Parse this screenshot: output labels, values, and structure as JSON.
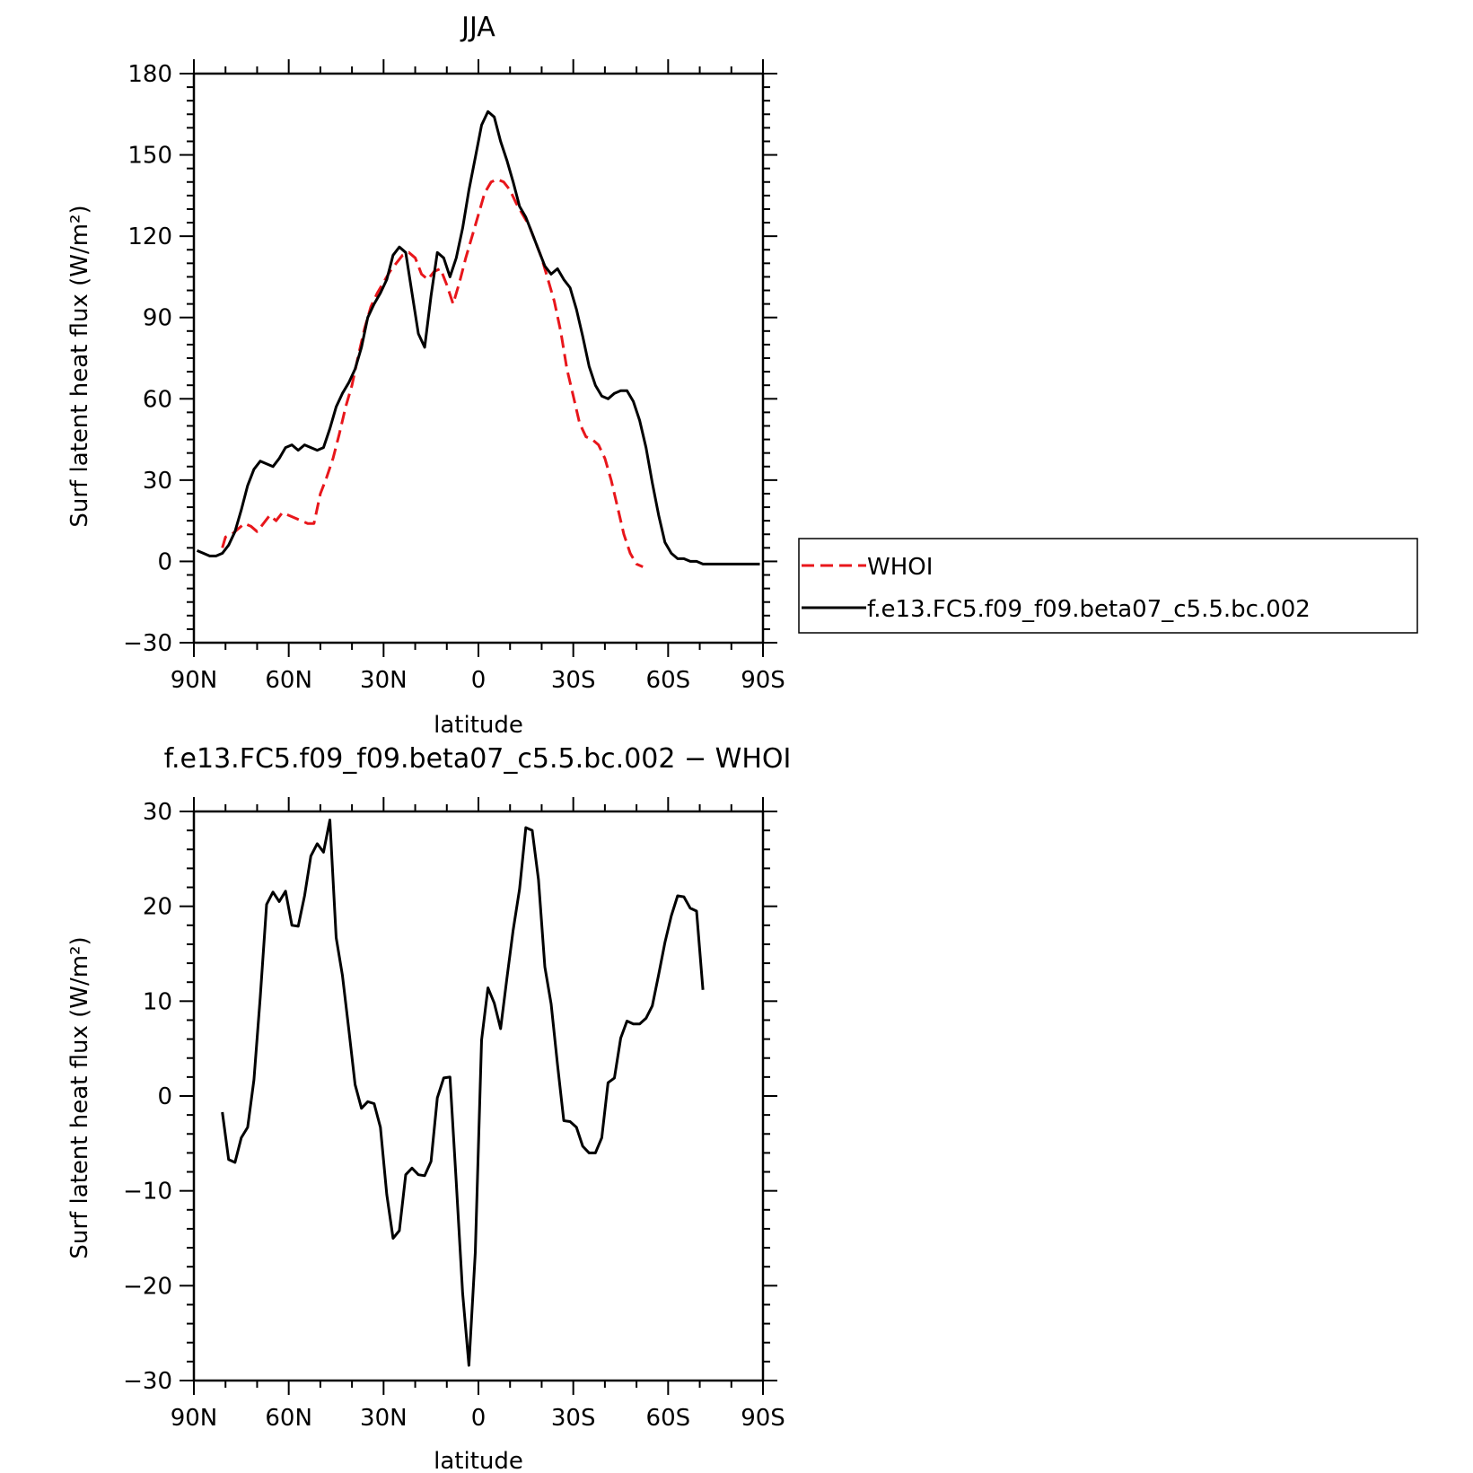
{
  "chart_data": [
    {
      "type": "line",
      "title": "JJA",
      "xlabel": "latitude",
      "ylabel": "Surf latent heat flux (W/m²)",
      "xlim": [
        90,
        -90
      ],
      "ylim": [
        -30,
        180
      ],
      "xticks": [
        90,
        60,
        30,
        0,
        -30,
        -60,
        -90
      ],
      "xtick_labels": [
        "90N",
        "60N",
        "30N",
        "0",
        "30S",
        "60S",
        "90S"
      ],
      "yticks": [
        -30,
        0,
        30,
        60,
        90,
        120,
        150,
        180
      ],
      "ytick_labels": [
        "−30",
        "0",
        "30",
        "60",
        "90",
        "120",
        "150",
        "180"
      ],
      "grid": false,
      "legend": "right",
      "series": [
        {
          "name": "WHOI",
          "color": "#e8161b",
          "style": "dashed",
          "x": [
            81,
            80,
            78,
            76,
            74,
            72,
            70,
            68,
            66,
            64,
            62,
            60,
            58,
            56,
            54,
            52,
            50,
            49,
            48,
            46,
            44,
            42,
            40,
            38,
            36,
            34,
            32,
            30,
            28,
            26,
            24,
            22,
            20,
            18,
            16,
            14,
            12,
            10,
            8,
            6,
            4,
            2,
            0,
            -2,
            -4,
            -6,
            -8,
            -10,
            -12,
            -14,
            -16,
            -18,
            -20,
            -22,
            -24,
            -26,
            -28,
            -30,
            -32,
            -34,
            -36,
            -38,
            -40,
            -42,
            -44,
            -46,
            -48,
            -50,
            -52,
            -54,
            -56,
            -58,
            -60,
            -62,
            -64,
            -66,
            -68,
            -70,
            -71
          ],
          "y": [
            5,
            9,
            10,
            12,
            14,
            13,
            11,
            14,
            17,
            15,
            18,
            17,
            16,
            15,
            14,
            14,
            25,
            28,
            31,
            38,
            47,
            57,
            65,
            76,
            86,
            94,
            99,
            103,
            107,
            110,
            113,
            114,
            112,
            106,
            104,
            107,
            108,
            102,
            95,
            103,
            112,
            120,
            128,
            136,
            140,
            141,
            140,
            137,
            132,
            128,
            124,
            118,
            112,
            104,
            96,
            85,
            71,
            61,
            51,
            46,
            45,
            43,
            38,
            30,
            20,
            10,
            3,
            -1,
            -2,
            null,
            null,
            null,
            null,
            null,
            null,
            null,
            null,
            null,
            null
          ],
          "xs": "x"
        },
        {
          "name": "f.e13.FC5.f09_f09.beta07_c5.5.bc.002",
          "color": "#000000",
          "style": "solid",
          "x": [
            89,
            87,
            85,
            83,
            81,
            79,
            77,
            75,
            73,
            71,
            69,
            67,
            65,
            63,
            61,
            59,
            57,
            55,
            53,
            51,
            49,
            47,
            45,
            43,
            41,
            39,
            37,
            35,
            33,
            31,
            29,
            27,
            25,
            23,
            21,
            19,
            17,
            15,
            13,
            11,
            9,
            7,
            5,
            3,
            1,
            -1,
            -3,
            -5,
            -7,
            -9,
            -11,
            -13,
            -15,
            -17,
            -19,
            -21,
            -23,
            -25,
            -27,
            -29,
            -31,
            -33,
            -35,
            -37,
            -39,
            -41,
            -43,
            -45,
            -47,
            -49,
            -51,
            -53,
            -55,
            -57,
            -59,
            -61,
            -63,
            -65,
            -67,
            -69,
            -71,
            -73,
            -75,
            -77,
            -79,
            -81,
            -83,
            -85,
            -87,
            -89
          ],
          "y": [
            4,
            3,
            2,
            2,
            3,
            6,
            11,
            19,
            28,
            34,
            37,
            36,
            35,
            38,
            42,
            43,
            41,
            43,
            42,
            41,
            42,
            49,
            57,
            62,
            66,
            71,
            79,
            90,
            95,
            99,
            104,
            113,
            116,
            114,
            99,
            84,
            79,
            98,
            114,
            112,
            105,
            112,
            123,
            137,
            149,
            161,
            166,
            164,
            155,
            148,
            140,
            131,
            127,
            121,
            115,
            109,
            106,
            108,
            104,
            101,
            93,
            83,
            72,
            65,
            61,
            60,
            62,
            63,
            63,
            59,
            52,
            42,
            29,
            17,
            7,
            3,
            1,
            1,
            0,
            0,
            -1,
            -1,
            -1,
            -1,
            -1,
            -1,
            -1,
            -1,
            -1,
            -1
          ],
          "xs": "x"
        }
      ]
    },
    {
      "type": "line",
      "title": "f.e13.FC5.f09_f09.beta07_c5.5.bc.002 − WHOI",
      "xlabel": "latitude",
      "ylabel": "Surf latent heat flux (W/m²)",
      "xlim": [
        90,
        -90
      ],
      "ylim": [
        -30,
        30
      ],
      "xticks": [
        90,
        60,
        30,
        0,
        -30,
        -60,
        -90
      ],
      "xtick_labels": [
        "90N",
        "60N",
        "30N",
        "0",
        "30S",
        "60S",
        "90S"
      ],
      "yticks": [
        -30,
        -20,
        -10,
        0,
        10,
        20,
        30
      ],
      "ytick_labels": [
        "−30",
        "−20",
        "−10",
        "0",
        "10",
        "20",
        "30"
      ],
      "grid": false,
      "series": [
        {
          "color": "#000000",
          "style": "solid",
          "x": [
            81,
            79,
            77,
            75,
            73,
            71,
            69,
            67,
            65,
            63,
            61,
            59,
            57,
            55,
            53,
            51,
            49,
            47,
            45,
            43,
            41,
            39,
            37,
            35,
            33,
            31,
            29,
            27,
            25,
            23,
            21,
            19,
            17,
            15,
            13,
            11,
            9,
            7,
            5,
            3,
            1,
            -1,
            -3,
            -5,
            -7,
            -9,
            -11,
            -13,
            -15,
            -17,
            -19,
            -21,
            -23,
            -25,
            -27,
            -29,
            -31,
            -33,
            -35,
            -37,
            -39,
            -41,
            -43,
            -45,
            -47,
            -49,
            -51,
            -53,
            -55,
            -57,
            -59,
            -61,
            -63,
            -65,
            -67,
            -69,
            -71
          ],
          "y": [
            -1.7,
            -6.7,
            -7.0,
            -4.4,
            -3.3,
            1.7,
            10.5,
            20.2,
            21.5,
            20.5,
            21.6,
            18.0,
            17.9,
            21.1,
            25.3,
            26.6,
            25.7,
            29.1,
            16.7,
            12.7,
            7.0,
            1.2,
            -1.3,
            -0.6,
            -0.8,
            -3.3,
            -10.4,
            -15.0,
            -14.2,
            -8.3,
            -7.6,
            -8.3,
            -8.4,
            -6.9,
            -0.2,
            1.9,
            2.0,
            -9.1,
            -20.8,
            -28.4,
            -16.5,
            5.9,
            11.4,
            9.8,
            7.1,
            12.4,
            17.5,
            21.8,
            28.3,
            28.0,
            22.8,
            13.6,
            9.7,
            3.3,
            -2.6,
            -2.7,
            -3.3,
            -5.3,
            -6.0,
            -6.0,
            -4.4,
            1.4,
            1.9,
            6.1,
            7.9,
            7.6,
            7.6,
            8.2,
            9.5,
            12.8,
            16.2,
            19.0,
            21.1,
            21.0,
            19.8,
            19.5,
            11.2
          ]
        }
      ]
    }
  ],
  "legend": {
    "items": [
      {
        "label": "WHOI",
        "color": "#e8161b",
        "style": "dashed"
      },
      {
        "label": "f.e13.FC5.f09_f09.beta07_c5.5.bc.002",
        "color": "#000000",
        "style": "solid"
      }
    ]
  }
}
